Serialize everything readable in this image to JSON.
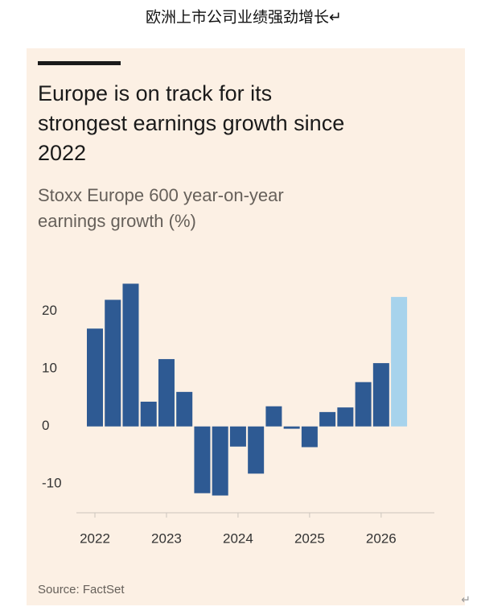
{
  "doc_title": "欧洲上市公司业绩强劲增长↵",
  "doc_end_mark": "↵",
  "chart_data": {
    "type": "bar",
    "title": [
      "Europe is on track for its",
      "strongest earnings growth since",
      "2022"
    ],
    "subtitle": [
      "Stoxx Europe 600 year-on-year",
      "earnings growth (%)"
    ],
    "source": "Source: FactSet",
    "categories": [
      "2022",
      null,
      null,
      null,
      "2023",
      null,
      null,
      null,
      "2024",
      null,
      null,
      null,
      "2025",
      null,
      null,
      null,
      "2026",
      null
    ],
    "values": [
      17,
      22,
      24.8,
      4.3,
      11.7,
      6,
      -11.6,
      -12,
      -3.5,
      -8.2,
      3.5,
      -0.4,
      -3.6,
      2.5,
      3.3,
      7.7,
      11,
      22.5
    ],
    "colors": [
      "#2e5a93",
      "#2e5a93",
      "#2e5a93",
      "#2e5a93",
      "#2e5a93",
      "#2e5a93",
      "#2e5a93",
      "#2e5a93",
      "#2e5a93",
      "#2e5a93",
      "#2e5a93",
      "#2e5a93",
      "#2e5a93",
      "#2e5a93",
      "#2e5a93",
      "#2e5a93",
      "#2e5a93",
      "#a7d3ec"
    ],
    "ylim": [
      -15,
      25
    ],
    "yticks": [
      -10,
      0,
      10,
      20
    ],
    "grid": false
  }
}
